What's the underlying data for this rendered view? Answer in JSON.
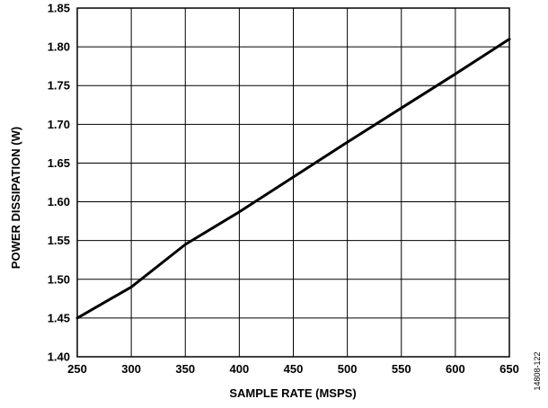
{
  "chart_data": {
    "type": "line",
    "title": "",
    "xlabel": "SAMPLE RATE (MSPS)",
    "ylabel": "POWER DISSIPATION (W)",
    "xlim": [
      250,
      650
    ],
    "ylim": [
      1.4,
      1.85
    ],
    "xticks": [
      "250",
      "300",
      "350",
      "400",
      "450",
      "500",
      "550",
      "600",
      "650"
    ],
    "yticks": [
      "1.40",
      "1.45",
      "1.50",
      "1.55",
      "1.60",
      "1.65",
      "1.70",
      "1.75",
      "1.80",
      "1.85"
    ],
    "grid": true,
    "series": [
      {
        "x": [
          250,
          300,
          350,
          400,
          450,
          500,
          550,
          600,
          650
        ],
        "y": [
          1.45,
          1.49,
          1.545,
          1.587,
          1.632,
          1.677,
          1.721,
          1.765,
          1.81
        ]
      }
    ],
    "colors": {
      "line": "#000000",
      "grid": "#000000",
      "background": "#ffffff"
    }
  },
  "figure_id": "14808-122"
}
